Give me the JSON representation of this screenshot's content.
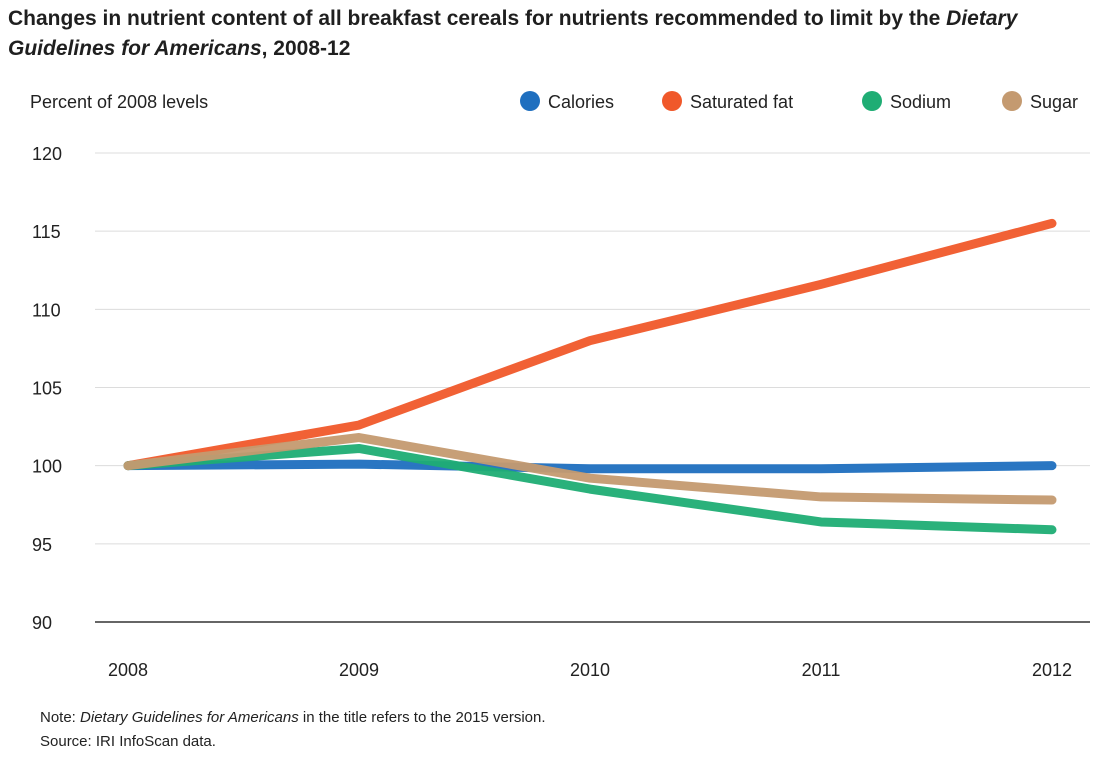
{
  "title": {
    "part1": "Changes in nutrient content of all breakfast cereals for nutrients recommended to limit by the ",
    "italic": "Dietary Guidelines for Americans",
    "part2": ", 2008-12"
  },
  "notes": {
    "note_prefix": "Note: ",
    "note_italic": "Dietary Guidelines for Americans",
    "note_suffix": " in the title refers to the 2015 version.",
    "source": "Source: IRI InfoScan data."
  },
  "chart_data": {
    "type": "line",
    "ylabel": "Percent of 2008 levels",
    "xlabel": "",
    "x": [
      "2008",
      "2009",
      "2010",
      "2011",
      "2012"
    ],
    "ylim": [
      90,
      120
    ],
    "yticks": [
      90,
      95,
      100,
      105,
      110,
      115,
      120
    ],
    "grid": true,
    "legend_position": "top-right",
    "series": [
      {
        "name": "Calories",
        "color": "#1f6fbf",
        "values": [
          100,
          100.1,
          99.8,
          99.8,
          100
        ]
      },
      {
        "name": "Saturated fat",
        "color": "#f0582a",
        "values": [
          100,
          102.6,
          108,
          111.6,
          115.5
        ]
      },
      {
        "name": "Sodium",
        "color": "#1fad74",
        "values": [
          100,
          101.1,
          98.5,
          96.4,
          95.9
        ]
      },
      {
        "name": "Sugar",
        "color": "#c49a70",
        "values": [
          100,
          101.8,
          99.2,
          98,
          97.8
        ]
      }
    ]
  }
}
